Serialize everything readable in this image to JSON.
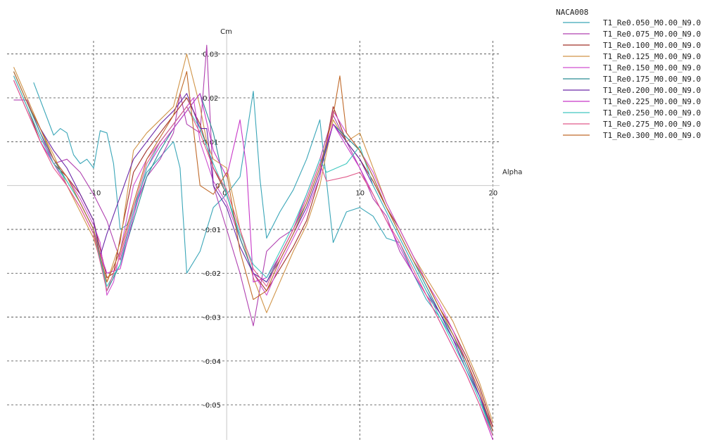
{
  "chart_data": {
    "type": "line",
    "title": "",
    "xlabel": "Alpha",
    "ylabel": "Cm",
    "xlim": [
      -16.5,
      20.5
    ],
    "ylim": [
      -0.058,
      0.033
    ],
    "x_ticks": [
      -10,
      0,
      10,
      20
    ],
    "x_tick_labels": [
      "-10",
      "0",
      "10",
      "20"
    ],
    "y_ticks": [
      0.03,
      0.02,
      0.01,
      0,
      -0.01,
      -0.02,
      -0.03,
      -0.04,
      -0.05
    ],
    "y_tick_labels": [
      "0.03",
      "0.02",
      "0.01",
      "0",
      "-0.01",
      "-0.02",
      "-0.03",
      "-0.04",
      "-0.05"
    ],
    "grid": true,
    "legend_title": "NACA008",
    "legend_position": "top-right",
    "series": [
      {
        "name": "T1_Re0.050_M0.00_N9.0",
        "color": "#3aa6b8",
        "x": [
          -14.5,
          -13,
          -12.5,
          -12,
          -11.5,
          -11,
          -10.5,
          -10,
          -9.5,
          -9,
          -8.5,
          -8,
          -7.5,
          -6,
          -4,
          -3.5,
          -3,
          -2,
          -1,
          0,
          1,
          2,
          2.5,
          3,
          4,
          5,
          6,
          7,
          8,
          9,
          10,
          11,
          12,
          13,
          14,
          15,
          16,
          17,
          18,
          19,
          20
        ],
        "y": [
          0.0235,
          0.0115,
          0.013,
          0.012,
          0.007,
          0.005,
          0.006,
          0.004,
          0.0125,
          0.012,
          0.005,
          -0.01,
          -0.009,
          0.003,
          0.01,
          0.004,
          -0.02,
          -0.015,
          -0.005,
          -0.002,
          0.002,
          0.0215,
          0.0015,
          -0.012,
          -0.006,
          -0.001,
          0.006,
          0.015,
          -0.013,
          -0.006,
          -0.005,
          -0.007,
          -0.012,
          -0.013,
          -0.02,
          -0.026,
          -0.03,
          -0.035,
          -0.042,
          -0.049,
          -0.056
        ]
      },
      {
        "name": "T1_Re0.075_M0.00_N9.0",
        "color": "#b040b0",
        "x": [
          -16,
          -15,
          -14,
          -13,
          -12,
          -11,
          -10,
          -9,
          -8,
          -7,
          -6,
          -5,
          -4,
          -3.5,
          -3,
          -2,
          -1.5,
          -1,
          0,
          1,
          2,
          3,
          4,
          5,
          6,
          7,
          8,
          9,
          10,
          11,
          12,
          13,
          14,
          15,
          16,
          17,
          18,
          19,
          20
        ],
        "y": [
          0.0195,
          0.0195,
          0.012,
          0.005,
          0.006,
          0.003,
          -0.002,
          -0.008,
          -0.017,
          -0.006,
          0.002,
          0.006,
          0.012,
          0.021,
          0.014,
          0.012,
          0.032,
          0.0,
          -0.01,
          -0.02,
          -0.032,
          -0.015,
          -0.012,
          -0.01,
          -0.002,
          0.006,
          0.016,
          0.01,
          0.004,
          -0.003,
          -0.007,
          -0.015,
          -0.02,
          -0.025,
          -0.029,
          -0.035,
          -0.04,
          -0.048,
          -0.055
        ]
      },
      {
        "name": "T1_Re0.100_M0.00_N9.0",
        "color": "#a03028",
        "x": [
          -16,
          -15,
          -14,
          -13,
          -12,
          -11,
          -10,
          -9,
          -8.5,
          -8,
          -7,
          -6,
          -5,
          -4,
          -3,
          -2,
          -1,
          0,
          1,
          2,
          3,
          4,
          5,
          6,
          7,
          8,
          9,
          10,
          11,
          12,
          13,
          14,
          15,
          16,
          17,
          18,
          19,
          20
        ],
        "y": [
          0.025,
          0.018,
          0.01,
          0.005,
          0.002,
          -0.002,
          -0.008,
          -0.021,
          -0.02,
          -0.012,
          0.003,
          0.008,
          0.012,
          0.016,
          0.02,
          0.014,
          0.004,
          -0.002,
          -0.012,
          -0.02,
          -0.024,
          -0.019,
          -0.014,
          -0.008,
          0.002,
          0.018,
          0.01,
          0.006,
          0.001,
          -0.005,
          -0.01,
          -0.016,
          -0.022,
          -0.028,
          -0.033,
          -0.039,
          -0.046,
          -0.055
        ]
      },
      {
        "name": "T1_Re0.125_M0.00_N9.0",
        "color": "#d09448",
        "x": [
          -16,
          -15,
          -14,
          -13,
          -12,
          -11,
          -10,
          -9,
          -8,
          -7,
          -6,
          -5,
          -4,
          -3,
          -2,
          -1.5,
          -1,
          0,
          1,
          2,
          3,
          4,
          5,
          6,
          7,
          8,
          9,
          10,
          11,
          12,
          13,
          14,
          15,
          16,
          17,
          18,
          19,
          20
        ],
        "y": [
          0.027,
          0.02,
          0.013,
          0.007,
          0.0,
          -0.006,
          -0.012,
          -0.022,
          -0.013,
          0.008,
          0.012,
          0.015,
          0.018,
          0.03,
          0.018,
          0.01,
          0.006,
          0.004,
          -0.01,
          -0.021,
          -0.029,
          -0.022,
          -0.015,
          -0.009,
          0.0,
          0.015,
          0.01,
          0.012,
          0.004,
          -0.004,
          -0.01,
          -0.016,
          -0.021,
          -0.026,
          -0.031,
          -0.038,
          -0.045,
          -0.054
        ]
      },
      {
        "name": "T1_Re0.150_M0.00_N9.0",
        "color": "#d050d0",
        "x": [
          -16,
          -15,
          -14,
          -13,
          -12,
          -11,
          -10,
          -9.5,
          -9,
          -8.5,
          -8,
          -7,
          -6,
          -5,
          -4,
          -3,
          -2.5,
          -2,
          -1,
          0,
          1,
          2,
          3,
          4,
          5,
          6,
          7,
          8,
          9,
          10,
          11,
          12,
          13,
          14,
          15,
          16,
          17,
          18,
          19,
          20
        ],
        "y": [
          0.025,
          0.018,
          0.011,
          0.006,
          0.002,
          -0.003,
          -0.009,
          -0.013,
          -0.025,
          -0.022,
          -0.015,
          0.0,
          0.006,
          0.01,
          0.014,
          0.018,
          0.02,
          0.01,
          0.001,
          -0.004,
          -0.012,
          -0.02,
          -0.025,
          -0.018,
          -0.012,
          -0.006,
          0.002,
          0.017,
          0.012,
          0.008,
          0.003,
          -0.004,
          -0.01,
          -0.016,
          -0.022,
          -0.027,
          -0.033,
          -0.04,
          -0.047,
          -0.056
        ]
      },
      {
        "name": "T1_Re0.175_M0.00_N9.0",
        "color": "#2a8c95",
        "x": [
          -16,
          -15,
          -14,
          -13,
          -12,
          -11,
          -10,
          -9,
          -8,
          -7,
          -6,
          -5,
          -4,
          -3,
          -2,
          -1,
          0,
          1,
          2,
          3,
          4,
          5,
          6,
          7,
          8,
          9,
          10,
          11,
          12,
          13,
          14,
          15,
          16,
          17,
          18,
          19,
          20
        ],
        "y": [
          0.026,
          0.019,
          0.012,
          0.006,
          0.001,
          -0.004,
          -0.01,
          -0.024,
          -0.018,
          -0.008,
          0.002,
          0.008,
          0.013,
          0.017,
          0.021,
          0.012,
          -0.002,
          -0.012,
          -0.02,
          -0.022,
          -0.016,
          -0.01,
          -0.004,
          0.004,
          0.014,
          0.011,
          0.008,
          0.002,
          -0.005,
          -0.011,
          -0.017,
          -0.023,
          -0.029,
          -0.034,
          -0.041,
          -0.048,
          -0.057
        ]
      },
      {
        "name": "T1_Re0.200_M0.00_N9.0",
        "color": "#6a28a8",
        "x": [
          -15,
          -14,
          -13,
          -12,
          -11,
          -10,
          -9.5,
          -9,
          -7,
          -6,
          -5,
          -4,
          -3,
          -2,
          -1.5,
          -1,
          0,
          1,
          2,
          3,
          4,
          5,
          6,
          7,
          8,
          9,
          10,
          11,
          12,
          13,
          14,
          15,
          16,
          17,
          18,
          19,
          20
        ],
        "y": [
          0.019,
          0.013,
          0.008,
          0.004,
          -0.002,
          -0.008,
          -0.016,
          -0.011,
          0.006,
          0.01,
          0.014,
          0.017,
          0.021,
          0.013,
          0.013,
          0.0,
          -0.005,
          -0.014,
          -0.02,
          -0.022,
          -0.017,
          -0.011,
          -0.005,
          0.003,
          0.014,
          0.01,
          0.006,
          0.0,
          -0.006,
          -0.012,
          -0.018,
          -0.024,
          -0.029,
          -0.035,
          -0.042,
          -0.048,
          -0.056
        ]
      },
      {
        "name": "T1_Re0.225_M0.00_N9.0",
        "color": "#c838c8",
        "x": [
          -16,
          -15,
          -14,
          -13,
          -12,
          -11,
          -10,
          -9,
          -8,
          -7,
          -6,
          -5,
          -4,
          -3,
          -2,
          -1,
          0,
          1,
          1.5,
          2,
          3,
          4,
          5,
          6,
          7,
          8,
          9,
          10,
          11,
          12,
          13,
          14,
          15,
          16,
          17,
          18,
          19,
          20
        ],
        "y": [
          0.024,
          0.017,
          0.01,
          0.005,
          0.0,
          -0.005,
          -0.011,
          -0.02,
          -0.019,
          -0.007,
          0.004,
          0.009,
          0.013,
          0.017,
          0.021,
          0.008,
          0.002,
          0.015,
          0.004,
          -0.022,
          -0.021,
          -0.016,
          -0.01,
          -0.003,
          0.005,
          0.014,
          0.009,
          0.004,
          -0.002,
          -0.008,
          -0.014,
          -0.02,
          -0.025,
          -0.031,
          -0.037,
          -0.043,
          -0.05,
          -0.058
        ]
      },
      {
        "name": "T1_Re0.250_M0.00_N9.0",
        "color": "#40c8c0",
        "x": [
          -16,
          -15,
          -14,
          -13,
          -12,
          -11,
          -10,
          -9,
          -8,
          -7,
          -6,
          -5,
          -4,
          -3,
          -2,
          -1,
          0,
          1,
          2,
          3,
          4,
          5,
          6,
          7,
          7.5,
          9,
          10,
          11,
          12,
          13,
          14,
          15,
          16,
          17,
          18,
          19,
          20
        ],
        "y": [
          0.025,
          0.018,
          0.011,
          0.005,
          0.001,
          -0.004,
          -0.01,
          -0.023,
          -0.018,
          -0.006,
          0.004,
          0.01,
          0.014,
          0.018,
          0.013,
          0.005,
          -0.002,
          -0.011,
          -0.018,
          -0.021,
          -0.015,
          -0.009,
          -0.002,
          0.006,
          0.003,
          0.005,
          0.009,
          0.0,
          -0.006,
          -0.012,
          -0.018,
          -0.024,
          -0.03,
          -0.036,
          -0.042,
          -0.049,
          -0.057
        ]
      },
      {
        "name": "T1_Re0.275_M0.00_N9.0",
        "color": "#e05a8a",
        "x": [
          -16,
          -15,
          -14,
          -13,
          -12,
          -11,
          -10,
          -9,
          -8,
          -7,
          -6,
          -5,
          -4,
          -3,
          -2,
          -1,
          0,
          1,
          2,
          3,
          4,
          5,
          6,
          7,
          7.5,
          9,
          10,
          11,
          12,
          13,
          14,
          15,
          16,
          17,
          18,
          19,
          20
        ],
        "y": [
          0.024,
          0.017,
          0.01,
          0.004,
          0.0,
          -0.005,
          -0.011,
          -0.024,
          -0.016,
          -0.005,
          0.005,
          0.01,
          0.014,
          0.018,
          0.012,
          0.004,
          -0.001,
          -0.01,
          -0.019,
          -0.023,
          -0.016,
          -0.01,
          -0.003,
          0.005,
          0.001,
          0.002,
          0.003,
          -0.002,
          -0.008,
          -0.013,
          -0.019,
          -0.025,
          -0.031,
          -0.037,
          -0.043,
          -0.05,
          -0.057
        ]
      },
      {
        "name": "T1_Re0.300_M0.00_N9.0",
        "color": "#c06a2a",
        "x": [
          -16,
          -15,
          -14,
          -13,
          -12,
          -11,
          -10,
          -9,
          -8,
          -7,
          -6,
          -5,
          -4,
          -3,
          -2,
          -1,
          0,
          1,
          2,
          3,
          4,
          5,
          6,
          7,
          8,
          8.5,
          9,
          10,
          11,
          12,
          13,
          14,
          15,
          16,
          17,
          18,
          19,
          20
        ],
        "y": [
          0.026,
          0.019,
          0.013,
          0.006,
          0.002,
          -0.004,
          -0.01,
          -0.022,
          -0.015,
          -0.004,
          0.006,
          0.011,
          0.016,
          0.026,
          0.0,
          -0.002,
          0.003,
          -0.015,
          -0.026,
          -0.024,
          -0.017,
          -0.011,
          -0.004,
          0.004,
          0.016,
          0.025,
          0.012,
          0.008,
          0.002,
          -0.005,
          -0.011,
          -0.017,
          -0.022,
          -0.028,
          -0.034,
          -0.04,
          -0.047,
          -0.056
        ]
      }
    ]
  }
}
